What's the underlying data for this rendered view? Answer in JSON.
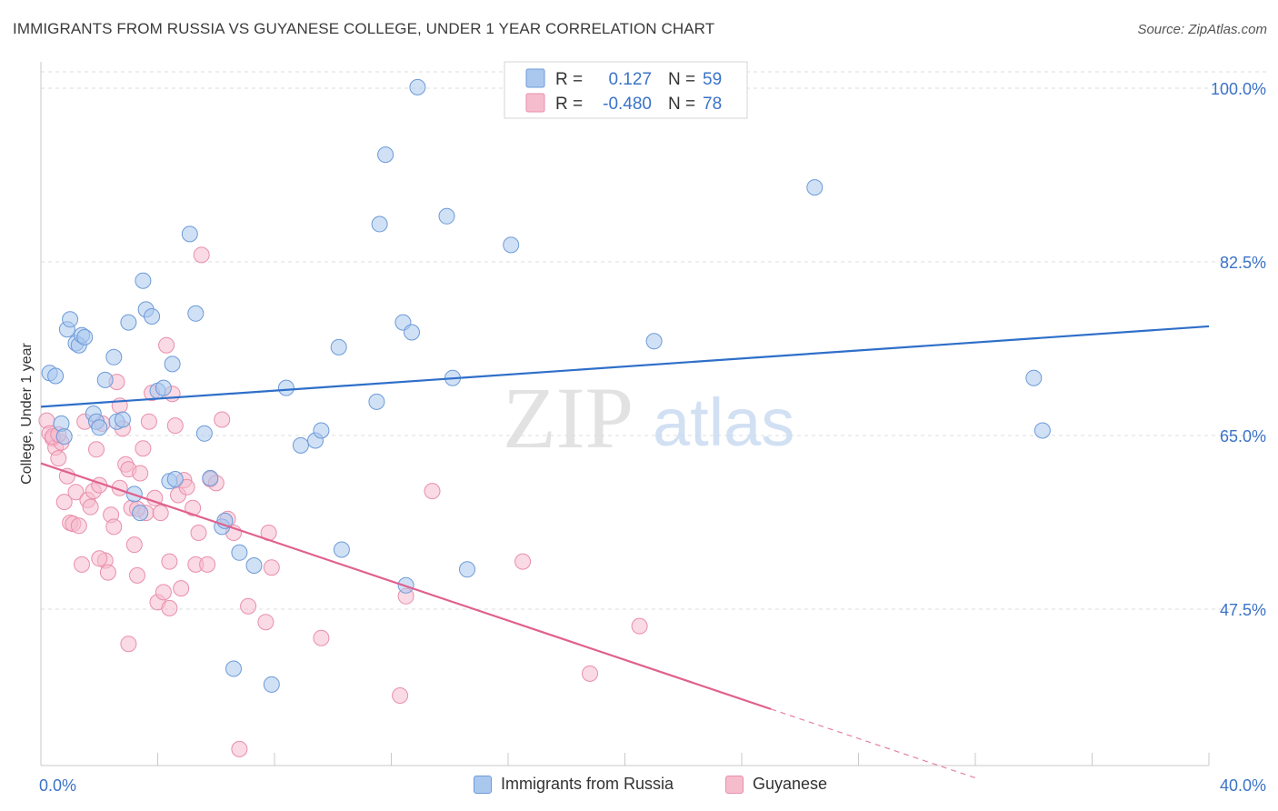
{
  "title": "IMMIGRANTS FROM RUSSIA VS GUYANESE COLLEGE, UNDER 1 YEAR CORRELATION CHART",
  "source": "Source: ZipAtlas.com",
  "watermark": {
    "zip": "ZIP",
    "atlas": "atlas"
  },
  "colors": {
    "blue_fill": "#aac8ee",
    "blue_stroke": "#6d9ad8",
    "blue_line": "#2f6fc9",
    "pink_fill": "#f5bccd",
    "pink_stroke": "#e98fab",
    "pink_line": "#e0608d",
    "axis_label": "#3b73c8",
    "grid": "#dddddd"
  },
  "legend": {
    "rows": [
      {
        "r_label": "R =",
        "r_value": "0.127",
        "n_label": "N =",
        "n_value": "59",
        "series": "blue"
      },
      {
        "r_label": "R =",
        "r_value": "-0.480",
        "n_label": "N =",
        "n_value": "78",
        "series": "pink"
      }
    ]
  },
  "bottom_legend": [
    {
      "label": "Immigrants from Russia",
      "series": "blue"
    },
    {
      "label": "Guyanese",
      "series": "pink"
    }
  ],
  "chart_data": {
    "type": "scatter",
    "title": "IMMIGRANTS FROM RUSSIA VS GUYANESE COLLEGE, UNDER 1 YEAR CORRELATION CHART",
    "xlabel": "",
    "ylabel": "College, Under 1 year",
    "xlim": [
      0,
      40
    ],
    "ylim": [
      30,
      103
    ],
    "x_tick_labels": [
      {
        "value": 0,
        "label": "0.0%"
      },
      {
        "value": 40,
        "label": "40.0%"
      }
    ],
    "y_tick_labels": [
      {
        "value": 100,
        "label": "100.0%"
      },
      {
        "value": 82.5,
        "label": "82.5%"
      },
      {
        "value": 65,
        "label": "65.0%"
      },
      {
        "value": 47.5,
        "label": "47.5%"
      }
    ],
    "x_minor_ticks": [
      4,
      8,
      12,
      16,
      20,
      24,
      28,
      32,
      36,
      40
    ],
    "series": [
      {
        "name": "Immigrants from Russia",
        "color": "blue",
        "r": 0.127,
        "n": 59,
        "trend": {
          "x0": 0,
          "y0": 67.9,
          "x1": 40,
          "y1": 76.0,
          "solid_to": 40
        },
        "points": [
          [
            0.3,
            71.3
          ],
          [
            0.5,
            71.0
          ],
          [
            0.7,
            66.2
          ],
          [
            0.8,
            64.9
          ],
          [
            0.9,
            75.7
          ],
          [
            1.0,
            76.7
          ],
          [
            1.2,
            74.3
          ],
          [
            1.3,
            74.1
          ],
          [
            1.4,
            75.1
          ],
          [
            1.5,
            74.9
          ],
          [
            1.8,
            67.2
          ],
          [
            1.9,
            66.4
          ],
          [
            2.0,
            65.8
          ],
          [
            2.2,
            70.6
          ],
          [
            2.5,
            72.9
          ],
          [
            2.6,
            66.4
          ],
          [
            2.8,
            66.6
          ],
          [
            3.0,
            76.4
          ],
          [
            3.2,
            59.1
          ],
          [
            3.4,
            57.2
          ],
          [
            3.5,
            80.6
          ],
          [
            3.6,
            77.7
          ],
          [
            3.8,
            77.0
          ],
          [
            4.0,
            69.5
          ],
          [
            4.2,
            69.8
          ],
          [
            4.4,
            60.4
          ],
          [
            4.5,
            72.2
          ],
          [
            4.6,
            60.6
          ],
          [
            5.1,
            85.3
          ],
          [
            5.3,
            77.3
          ],
          [
            5.6,
            65.2
          ],
          [
            5.8,
            60.7
          ],
          [
            6.2,
            55.8
          ],
          [
            6.3,
            56.4
          ],
          [
            6.6,
            41.5
          ],
          [
            6.8,
            53.2
          ],
          [
            7.3,
            51.9
          ],
          [
            7.9,
            39.9
          ],
          [
            8.4,
            69.8
          ],
          [
            8.9,
            64.0
          ],
          [
            9.4,
            64.5
          ],
          [
            9.6,
            65.5
          ],
          [
            10.2,
            73.9
          ],
          [
            10.3,
            53.5
          ],
          [
            11.5,
            68.4
          ],
          [
            11.6,
            86.3
          ],
          [
            11.8,
            93.3
          ],
          [
            12.4,
            76.4
          ],
          [
            12.5,
            49.9
          ],
          [
            12.7,
            75.4
          ],
          [
            12.9,
            100.1
          ],
          [
            13.9,
            87.1
          ],
          [
            14.1,
            70.8
          ],
          [
            14.6,
            51.5
          ],
          [
            16.1,
            84.2
          ],
          [
            21.0,
            74.5
          ],
          [
            26.5,
            90.0
          ],
          [
            34.0,
            70.8
          ],
          [
            34.3,
            65.5
          ]
        ]
      },
      {
        "name": "Guyanese",
        "color": "pink",
        "r": -0.48,
        "n": 78,
        "trend": {
          "x0": 0,
          "y0": 62.2,
          "x1": 32.0,
          "y1": 30.5,
          "solid_to": 25.0
        },
        "points": [
          [
            0.2,
            66.5
          ],
          [
            0.3,
            65.2
          ],
          [
            0.4,
            64.7
          ],
          [
            0.5,
            63.8
          ],
          [
            0.6,
            62.7
          ],
          [
            0.7,
            64.3
          ],
          [
            0.8,
            58.3
          ],
          [
            0.9,
            60.9
          ],
          [
            1.0,
            56.2
          ],
          [
            1.1,
            56.1
          ],
          [
            1.2,
            59.3
          ],
          [
            1.3,
            55.9
          ],
          [
            1.5,
            66.4
          ],
          [
            1.6,
            58.5
          ],
          [
            1.7,
            57.8
          ],
          [
            1.8,
            59.4
          ],
          [
            1.9,
            63.6
          ],
          [
            2.0,
            60.0
          ],
          [
            2.1,
            66.2
          ],
          [
            2.2,
            52.4
          ],
          [
            2.3,
            51.2
          ],
          [
            2.4,
            57.0
          ],
          [
            2.5,
            55.8
          ],
          [
            2.6,
            70.4
          ],
          [
            2.7,
            68.0
          ],
          [
            2.8,
            65.7
          ],
          [
            2.9,
            62.1
          ],
          [
            3.0,
            61.6
          ],
          [
            3.1,
            57.7
          ],
          [
            3.2,
            54.0
          ],
          [
            3.3,
            50.9
          ],
          [
            3.4,
            61.2
          ],
          [
            3.5,
            63.7
          ],
          [
            3.6,
            57.2
          ],
          [
            3.7,
            66.4
          ],
          [
            3.8,
            69.3
          ],
          [
            3.9,
            58.7
          ],
          [
            4.0,
            48.2
          ],
          [
            4.1,
            57.2
          ],
          [
            4.2,
            49.2
          ],
          [
            4.3,
            74.1
          ],
          [
            4.4,
            47.6
          ],
          [
            4.5,
            69.2
          ],
          [
            4.6,
            66.0
          ],
          [
            4.7,
            59.0
          ],
          [
            4.8,
            49.6
          ],
          [
            4.9,
            60.5
          ],
          [
            5.0,
            59.8
          ],
          [
            5.2,
            57.7
          ],
          [
            5.3,
            52.0
          ],
          [
            5.4,
            55.2
          ],
          [
            5.5,
            83.2
          ],
          [
            5.7,
            52.0
          ],
          [
            5.8,
            60.6
          ],
          [
            6.0,
            60.2
          ],
          [
            6.2,
            66.6
          ],
          [
            6.4,
            56.6
          ],
          [
            6.6,
            55.2
          ],
          [
            6.8,
            33.4
          ],
          [
            7.1,
            47.8
          ],
          [
            7.7,
            46.2
          ],
          [
            7.8,
            55.2
          ],
          [
            7.9,
            51.7
          ],
          [
            9.6,
            44.6
          ],
          [
            12.3,
            38.8
          ],
          [
            12.5,
            48.8
          ],
          [
            13.4,
            59.4
          ],
          [
            16.5,
            52.3
          ],
          [
            18.8,
            41.0
          ],
          [
            20.5,
            45.8
          ],
          [
            0.4,
            64.9
          ],
          [
            0.6,
            65.1
          ],
          [
            1.4,
            52.0
          ],
          [
            2.0,
            52.6
          ],
          [
            3.0,
            44.0
          ],
          [
            2.7,
            59.7
          ],
          [
            3.3,
            57.6
          ],
          [
            4.4,
            52.3
          ]
        ]
      }
    ]
  }
}
